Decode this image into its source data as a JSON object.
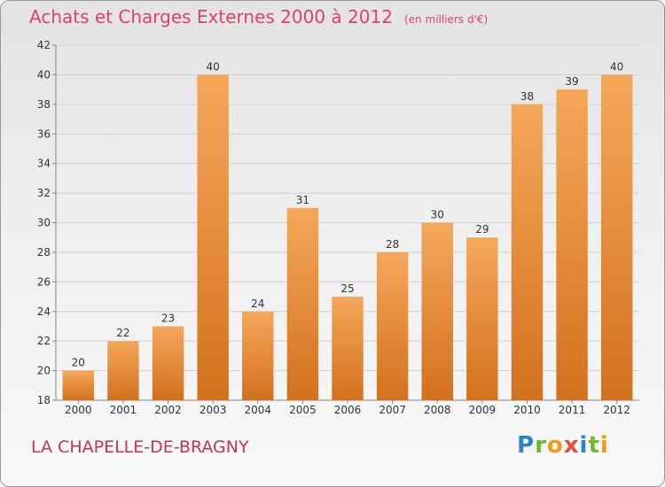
{
  "header": {
    "title": "Achats et Charges Externes 2000 à 2012",
    "subtitle": "(en milliers d'€)"
  },
  "footer": {
    "commune": "LA CHAPELLE-DE-BRAGNY",
    "logo": {
      "text": "Proxiti",
      "letters": [
        "P",
        "r",
        "o",
        "x",
        "i",
        "t",
        "i"
      ]
    }
  },
  "chart_data": {
    "type": "bar",
    "title": "Achats et Charges Externes 2000 à 2012",
    "subtitle": "(en milliers d'€)",
    "xlabel": "",
    "ylabel": "",
    "categories": [
      "2000",
      "2001",
      "2002",
      "2003",
      "2004",
      "2005",
      "2006",
      "2007",
      "2008",
      "2009",
      "2010",
      "2011",
      "2012"
    ],
    "values": [
      20,
      22,
      23,
      40,
      24,
      31,
      25,
      28,
      30,
      29,
      38,
      39,
      40
    ],
    "data_labels": [
      "20",
      "22",
      "23",
      "40",
      "24",
      "31",
      "25",
      "28",
      "30",
      "29",
      "38",
      "39",
      "40"
    ],
    "ylim": [
      18,
      42
    ],
    "yticks": [
      18,
      20,
      22,
      24,
      26,
      28,
      30,
      32,
      34,
      36,
      38,
      40,
      42
    ],
    "grid": true,
    "legend": "none",
    "colors": {
      "bar_top": "#f6a75a",
      "bar_bottom": "#d2711e",
      "title": "#e0406c",
      "commune": "#c8325e",
      "axis_text": "#333333",
      "grid": "#d0d0d0"
    }
  }
}
